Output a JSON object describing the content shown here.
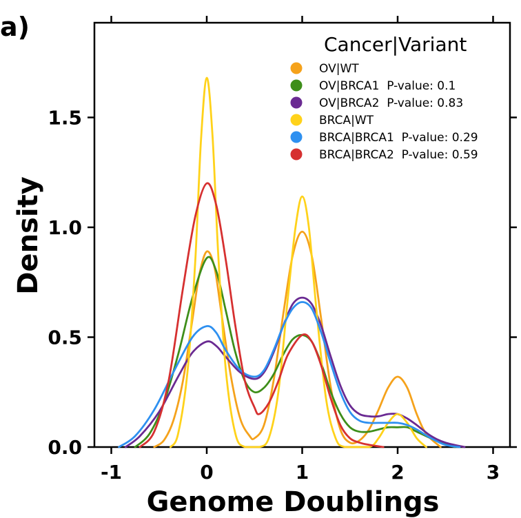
{
  "panel_label": "a)",
  "chart_data": {
    "type": "line",
    "title": "",
    "xlabel": "Genome Doublings",
    "ylabel": "Density",
    "xlim": [
      -1,
      3
    ],
    "ylim": [
      0,
      1.8
    ],
    "x_ticks": [
      "-1",
      "0",
      "1",
      "2",
      "3"
    ],
    "y_ticks": [
      "0.0",
      "0.5",
      "1.0",
      "1.5"
    ],
    "legend_title": "Cancer|Variant",
    "legend_position": "top-right",
    "grid": false,
    "series": [
      {
        "name": "OV|WT",
        "label": "OV|WT",
        "color": "#F5A21B",
        "points": [
          [
            -0.55,
            0.0
          ],
          [
            -0.45,
            0.03
          ],
          [
            -0.35,
            0.12
          ],
          [
            -0.25,
            0.3
          ],
          [
            -0.15,
            0.58
          ],
          [
            -0.08,
            0.78
          ],
          [
            0.0,
            0.89
          ],
          [
            0.08,
            0.82
          ],
          [
            0.15,
            0.62
          ],
          [
            0.25,
            0.33
          ],
          [
            0.35,
            0.13
          ],
          [
            0.45,
            0.05
          ],
          [
            0.5,
            0.04
          ],
          [
            0.6,
            0.1
          ],
          [
            0.7,
            0.3
          ],
          [
            0.8,
            0.6
          ],
          [
            0.9,
            0.87
          ],
          [
            1.0,
            0.98
          ],
          [
            1.1,
            0.87
          ],
          [
            1.2,
            0.58
          ],
          [
            1.3,
            0.27
          ],
          [
            1.4,
            0.08
          ],
          [
            1.5,
            0.02
          ],
          [
            1.6,
            0.03
          ],
          [
            1.7,
            0.08
          ],
          [
            1.8,
            0.17
          ],
          [
            1.9,
            0.27
          ],
          [
            2.0,
            0.32
          ],
          [
            2.1,
            0.27
          ],
          [
            2.2,
            0.15
          ],
          [
            2.3,
            0.06
          ],
          [
            2.45,
            0.0
          ]
        ]
      },
      {
        "name": "OV|BRCA1",
        "label": "OV|BRCA1  P-value: 0.1",
        "color": "#3E8E1A",
        "points": [
          [
            -0.75,
            0.0
          ],
          [
            -0.6,
            0.06
          ],
          [
            -0.45,
            0.2
          ],
          [
            -0.3,
            0.42
          ],
          [
            -0.15,
            0.68
          ],
          [
            0.0,
            0.86
          ],
          [
            0.1,
            0.8
          ],
          [
            0.2,
            0.62
          ],
          [
            0.3,
            0.43
          ],
          [
            0.4,
            0.3
          ],
          [
            0.5,
            0.25
          ],
          [
            0.6,
            0.27
          ],
          [
            0.7,
            0.33
          ],
          [
            0.8,
            0.42
          ],
          [
            0.9,
            0.49
          ],
          [
            1.0,
            0.51
          ],
          [
            1.1,
            0.48
          ],
          [
            1.2,
            0.38
          ],
          [
            1.3,
            0.25
          ],
          [
            1.4,
            0.15
          ],
          [
            1.5,
            0.09
          ],
          [
            1.6,
            0.07
          ],
          [
            1.7,
            0.07
          ],
          [
            1.8,
            0.08
          ],
          [
            1.9,
            0.09
          ],
          [
            2.0,
            0.09
          ],
          [
            2.1,
            0.09
          ],
          [
            2.2,
            0.07
          ],
          [
            2.4,
            0.03
          ],
          [
            2.6,
            0.0
          ]
        ]
      },
      {
        "name": "OV|BRCA2",
        "label": "OV|BRCA2  P-value: 0.83",
        "color": "#6A2A92",
        "points": [
          [
            -0.85,
            0.0
          ],
          [
            -0.7,
            0.05
          ],
          [
            -0.5,
            0.16
          ],
          [
            -0.3,
            0.32
          ],
          [
            -0.15,
            0.43
          ],
          [
            0.0,
            0.48
          ],
          [
            0.1,
            0.46
          ],
          [
            0.2,
            0.41
          ],
          [
            0.35,
            0.34
          ],
          [
            0.5,
            0.31
          ],
          [
            0.6,
            0.34
          ],
          [
            0.7,
            0.43
          ],
          [
            0.8,
            0.55
          ],
          [
            0.9,
            0.65
          ],
          [
            1.0,
            0.68
          ],
          [
            1.1,
            0.65
          ],
          [
            1.2,
            0.55
          ],
          [
            1.3,
            0.41
          ],
          [
            1.4,
            0.28
          ],
          [
            1.5,
            0.19
          ],
          [
            1.6,
            0.15
          ],
          [
            1.7,
            0.14
          ],
          [
            1.8,
            0.14
          ],
          [
            1.9,
            0.15
          ],
          [
            2.0,
            0.15
          ],
          [
            2.1,
            0.13
          ],
          [
            2.2,
            0.1
          ],
          [
            2.35,
            0.05
          ],
          [
            2.5,
            0.02
          ],
          [
            2.7,
            0.0
          ]
        ]
      },
      {
        "name": "BRCA|WT",
        "label": "BRCA|WT",
        "color": "#FFD21A",
        "points": [
          [
            -0.38,
            0.0
          ],
          [
            -0.3,
            0.06
          ],
          [
            -0.2,
            0.35
          ],
          [
            -0.12,
            0.85
          ],
          [
            -0.06,
            1.4
          ],
          [
            0.0,
            1.68
          ],
          [
            0.06,
            1.42
          ],
          [
            0.12,
            0.88
          ],
          [
            0.2,
            0.35
          ],
          [
            0.3,
            0.06
          ],
          [
            0.4,
            0.0
          ],
          [
            0.55,
            0.0
          ],
          [
            0.65,
            0.04
          ],
          [
            0.75,
            0.25
          ],
          [
            0.85,
            0.68
          ],
          [
            0.93,
            1.0
          ],
          [
            1.0,
            1.14
          ],
          [
            1.07,
            1.0
          ],
          [
            1.15,
            0.62
          ],
          [
            1.25,
            0.22
          ],
          [
            1.35,
            0.04
          ],
          [
            1.45,
            0.0
          ],
          [
            1.7,
            0.0
          ],
          [
            1.8,
            0.04
          ],
          [
            1.9,
            0.11
          ],
          [
            2.0,
            0.15
          ],
          [
            2.1,
            0.11
          ],
          [
            2.2,
            0.04
          ],
          [
            2.3,
            0.0
          ]
        ]
      },
      {
        "name": "BRCA|BRCA1",
        "label": "BRCA|BRCA1  P-value: 0.29",
        "color": "#2E90F0",
        "points": [
          [
            -0.92,
            0.0
          ],
          [
            -0.75,
            0.05
          ],
          [
            -0.55,
            0.17
          ],
          [
            -0.35,
            0.34
          ],
          [
            -0.15,
            0.5
          ],
          [
            0.0,
            0.55
          ],
          [
            0.1,
            0.52
          ],
          [
            0.2,
            0.44
          ],
          [
            0.35,
            0.35
          ],
          [
            0.5,
            0.32
          ],
          [
            0.6,
            0.35
          ],
          [
            0.7,
            0.44
          ],
          [
            0.8,
            0.55
          ],
          [
            0.9,
            0.63
          ],
          [
            1.0,
            0.66
          ],
          [
            1.1,
            0.63
          ],
          [
            1.2,
            0.52
          ],
          [
            1.3,
            0.38
          ],
          [
            1.4,
            0.25
          ],
          [
            1.5,
            0.16
          ],
          [
            1.6,
            0.12
          ],
          [
            1.7,
            0.11
          ],
          [
            1.8,
            0.11
          ],
          [
            1.9,
            0.11
          ],
          [
            2.0,
            0.11
          ],
          [
            2.1,
            0.1
          ],
          [
            2.2,
            0.08
          ],
          [
            2.35,
            0.04
          ],
          [
            2.5,
            0.01
          ],
          [
            2.65,
            0.0
          ]
        ]
      },
      {
        "name": "BRCA|BRCA2",
        "label": "BRCA|BRCA2  P-value: 0.59",
        "color": "#D63030",
        "points": [
          [
            -0.7,
            0.0
          ],
          [
            -0.55,
            0.07
          ],
          [
            -0.4,
            0.3
          ],
          [
            -0.25,
            0.72
          ],
          [
            -0.12,
            1.05
          ],
          [
            0.0,
            1.2
          ],
          [
            0.1,
            1.1
          ],
          [
            0.2,
            0.85
          ],
          [
            0.3,
            0.55
          ],
          [
            0.4,
            0.3
          ],
          [
            0.5,
            0.18
          ],
          [
            0.55,
            0.15
          ],
          [
            0.65,
            0.2
          ],
          [
            0.75,
            0.3
          ],
          [
            0.85,
            0.42
          ],
          [
            1.0,
            0.51
          ],
          [
            1.1,
            0.48
          ],
          [
            1.2,
            0.37
          ],
          [
            1.3,
            0.22
          ],
          [
            1.4,
            0.1
          ],
          [
            1.5,
            0.04
          ],
          [
            1.6,
            0.02
          ],
          [
            1.7,
            0.01
          ],
          [
            1.85,
            0.0
          ]
        ]
      }
    ]
  }
}
